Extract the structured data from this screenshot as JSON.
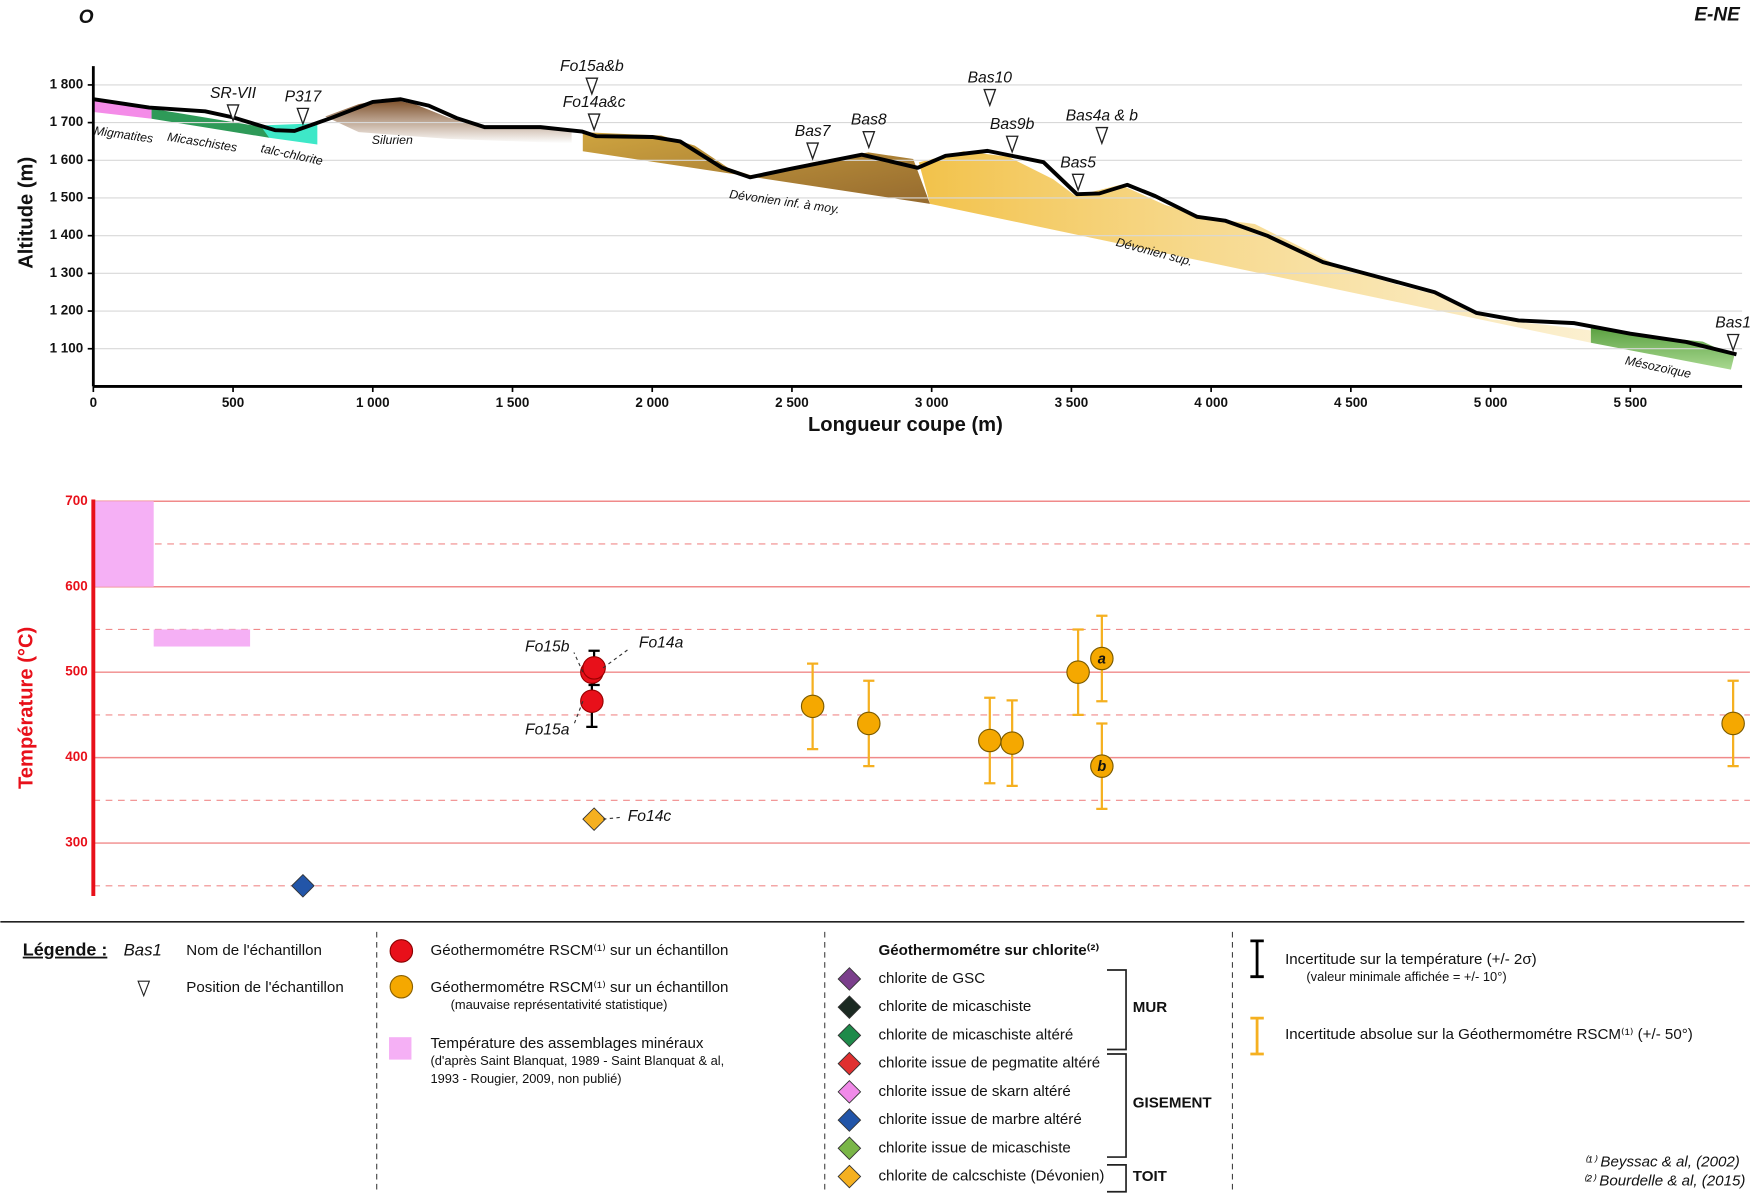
{
  "corner_labels": {
    "left": "O",
    "right": "E-NE"
  },
  "chart_data": [
    {
      "type": "line",
      "x_label": "Longueur coupe (m)",
      "y_label": "Altitude (m)",
      "color": "#000000",
      "x": [
        0,
        200,
        400,
        500,
        650,
        720,
        850,
        1000,
        1100,
        1200,
        1300,
        1400,
        1600,
        1750,
        1800,
        2000,
        2100,
        2250,
        2350,
        2500,
        2750,
        2950,
        3050,
        3200,
        3400,
        3520,
        3600,
        3700,
        3800,
        3950,
        4050,
        4200,
        4400,
        4600,
        4800,
        4950,
        5100,
        5300,
        5500,
        5700,
        5880
      ],
      "values": [
        1762,
        1740,
        1730,
        1714,
        1680,
        1678,
        1712,
        1755,
        1762,
        1745,
        1712,
        1688,
        1688,
        1676,
        1664,
        1662,
        1650,
        1580,
        1555,
        1578,
        1615,
        1580,
        1612,
        1625,
        1595,
        1510,
        1512,
        1535,
        1505,
        1450,
        1440,
        1400,
        1330,
        1290,
        1250,
        1195,
        1175,
        1168,
        1140,
        1118,
        1085
      ],
      "xlim": [
        0,
        5900
      ],
      "xticks": [
        0,
        500,
        {
          "value": 1000,
          "label": "1 000"
        },
        {
          "value": 1500,
          "label": "1 500"
        },
        {
          "value": 2000,
          "label": "2 000"
        },
        {
          "value": 2500,
          "label": "2 500"
        },
        {
          "value": 3000,
          "label": "3 000"
        },
        {
          "value": 3500,
          "label": "3 500"
        },
        {
          "value": 4000,
          "label": "4 000"
        },
        {
          "value": 4500,
          "label": "4 500"
        },
        {
          "value": 5000,
          "label": "5 000"
        },
        {
          "value": 5500,
          "label": "5 500"
        }
      ],
      "ylim": [
        1000,
        1850
      ],
      "yticks": [
        {
          "value": 1100,
          "label": "1 100"
        },
        {
          "value": 1200,
          "label": "1 200"
        },
        {
          "value": 1300,
          "label": "1 300"
        },
        {
          "value": 1400,
          "label": "1 400"
        },
        {
          "value": 1500,
          "label": "1 500"
        },
        {
          "value": 1600,
          "label": "1 600"
        },
        {
          "value": 1700,
          "label": "1 700"
        },
        {
          "value": 1800,
          "label": "1 800"
        }
      ],
      "grid": true,
      "samples": [
        {
          "label": "SR-VII",
          "x": 500,
          "y": 1726
        },
        {
          "label": "P317",
          "x": 750,
          "y": 1717
        },
        {
          "label": "Fo15a&b",
          "x": 1784,
          "y": 1797
        },
        {
          "label": "Fo14a&c",
          "x": 1792,
          "y": 1702
        },
        {
          "label": "Bas7",
          "x": 2574,
          "y": 1625
        },
        {
          "label": "Bas8",
          "x": 2775,
          "y": 1655
        },
        {
          "label": "Bas10",
          "x": 3208,
          "y": 1767
        },
        {
          "label": "Bas9b",
          "x": 3288,
          "y": 1643
        },
        {
          "label": "Bas4a & b",
          "x": 3609,
          "y": 1666
        },
        {
          "label": "Bas5",
          "x": 3524,
          "y": 1542
        },
        {
          "label": "Bas1",
          "x": 5868,
          "y": 1117
        }
      ],
      "formations": [
        {
          "label": "Migmatites",
          "x": 108,
          "y": 1666
        },
        {
          "label": "Micaschistes",
          "x": 389,
          "y": 1646
        },
        {
          "label": "talc-chlorite",
          "x": 710,
          "y": 1613
        },
        {
          "label": "Silurien",
          "x": 1070,
          "y": 1652
        },
        {
          "label": "Dévonien inf. à moy.",
          "x": 2473,
          "y": 1488
        },
        {
          "label": "Dévonien sup.",
          "x": 3796,
          "y": 1355
        },
        {
          "label": "Mésozoïque",
          "x": 5599,
          "y": 1049
        }
      ]
    },
    {
      "type": "scatter",
      "y_label": "Température (°C)",
      "axis_color": "#e8101a",
      "xlim": [
        0,
        5900
      ],
      "ylim": [
        238,
        702
      ],
      "yticks": [
        300,
        400,
        500,
        600,
        700
      ],
      "minor_yticks": [
        250,
        350,
        450,
        550,
        650
      ],
      "grid": true,
      "ranges": {
        "color": "#f5b0f5",
        "boxes": [
          {
            "x": [
              0,
              216
            ],
            "y": [
              600,
              700
            ]
          },
          {
            "x": [
              216,
              561
            ],
            "y": [
              530,
              550
            ]
          }
        ]
      },
      "series": [
        {
          "name": "Géothermométre RSCM⁽¹⁾ sur un échantillon",
          "marker": "circle",
          "color": "#e8101a",
          "error_color": "#000000",
          "x": [
            1784,
            1792,
            1784
          ],
          "values": [
            500,
            505,
            466
          ],
          "errors": [
            10,
            20,
            30
          ],
          "point_labels": [
            "Fo15b",
            "Fo14a",
            "Fo15a"
          ]
        },
        {
          "name": "Géothermométre RSCM⁽¹⁾ sur un échantillon",
          "marker": "circle",
          "color": "#f5a800",
          "error_color": "#f5b020",
          "x": [
            2574,
            2775,
            3208,
            3288,
            3524,
            3609,
            3609,
            5868
          ],
          "values": [
            460,
            440,
            420,
            417,
            500,
            516,
            390,
            440
          ],
          "errors": [
            50,
            50,
            50,
            50,
            50,
            50,
            50,
            50
          ],
          "point_labels": [
            null,
            null,
            null,
            null,
            null,
            "a",
            "b",
            null
          ]
        },
        {
          "marker": "diamond",
          "colors": [
            "#f5b020",
            "#2255a8"
          ],
          "x": [
            1792,
            750
          ],
          "values": [
            328,
            250
          ],
          "point_labels": [
            "Fo14c",
            null
          ]
        }
      ]
    }
  ],
  "legend": {
    "title": "Légende :",
    "sample_name": "Bas1",
    "sample_name_text": "Nom de l'échantillon",
    "sample_position_text": "Position de l'échantillon",
    "rscm_poor_note": "(mauvaise représentativité statistique)",
    "assemblage": [
      "Température des assemblages minéraux",
      "(d'après Saint Blanquat, 1989 - Saint Blanquat & al,",
      "1993 - Rougier, 2009, non publié)"
    ],
    "chlorite_title": "Géothermométre sur chlorite⁽²⁾",
    "chlorite_items": [
      {
        "label": "chlorite de GSC",
        "color": "#7b3f8c"
      },
      {
        "label": "chlorite de micaschiste",
        "color": "#1b2a22"
      },
      {
        "label": "chlorite de micaschiste altéré",
        "color": "#1e8a4a"
      },
      {
        "label": "chlorite issue de pegmatite altéré",
        "color": "#e03030"
      },
      {
        "label": "chlorite issue de skarn altéré",
        "color": "#f08ae8"
      },
      {
        "label": "chlorite issue de marbre altéré",
        "color": "#2255a8"
      },
      {
        "label": "chlorite issue de micaschiste",
        "color": "#7ab648"
      },
      {
        "label": "chlorite de calcschiste (Dévonien)",
        "color": "#f5b020"
      }
    ],
    "groups": [
      "MUR",
      "GISEMENT",
      "TOIT"
    ],
    "uncertainty_temp": [
      "Incertitude sur la température (+/- 2σ)",
      "(valeur minimale affichée = +/- 10°)"
    ],
    "uncertainty_rscm": "Incertitude absolue sur la Géothermométre RSCM⁽¹⁾ (+/- 50°)",
    "references": [
      "⁽¹⁾ Beyssac & al, (2002)",
      "⁽²⁾ Bourdelle & al, (2015)"
    ]
  }
}
